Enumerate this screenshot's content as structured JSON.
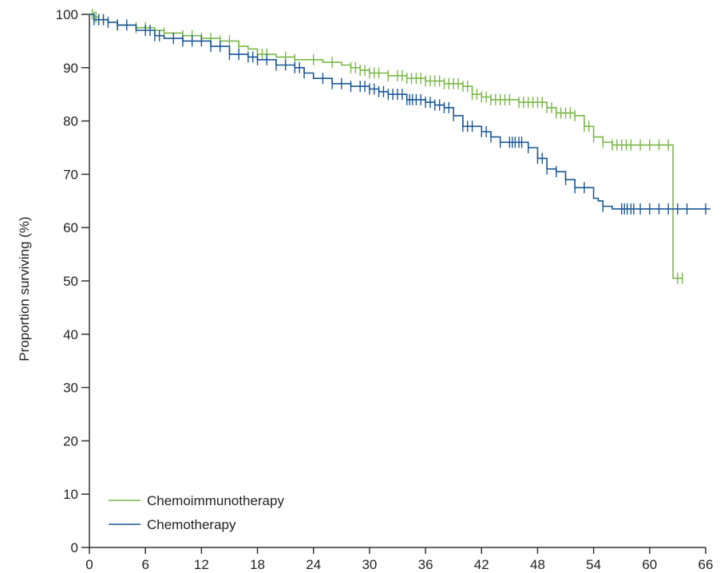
{
  "chart_data": {
    "type": "line",
    "ylabel": "Proportion surviving (%)",
    "xlabel": "",
    "xlim": [
      0,
      66
    ],
    "ylim": [
      0,
      100
    ],
    "x_ticks": [
      0,
      6,
      12,
      18,
      24,
      30,
      36,
      42,
      48,
      54,
      60,
      66
    ],
    "y_ticks": [
      0,
      10,
      20,
      30,
      40,
      50,
      60,
      70,
      80,
      90,
      100
    ],
    "grid": false,
    "legend_position": "bottom-left",
    "series": [
      {
        "name": "Chemoimmunotherapy",
        "color": "#7ab648",
        "points": [
          [
            0,
            100
          ],
          [
            0.5,
            99.5
          ],
          [
            1,
            99
          ],
          [
            2,
            98.5
          ],
          [
            3,
            98
          ],
          [
            5,
            97.5
          ],
          [
            7,
            97
          ],
          [
            8,
            96.5
          ],
          [
            10,
            96
          ],
          [
            12,
            95.5
          ],
          [
            14,
            95
          ],
          [
            16,
            94
          ],
          [
            17,
            93.5
          ],
          [
            18,
            92.5
          ],
          [
            20,
            92
          ],
          [
            22,
            91.5
          ],
          [
            25,
            91
          ],
          [
            27,
            90.5
          ],
          [
            28,
            90
          ],
          [
            29,
            89.5
          ],
          [
            30,
            89
          ],
          [
            32,
            88.5
          ],
          [
            34,
            88
          ],
          [
            36,
            87.5
          ],
          [
            38,
            87
          ],
          [
            40,
            86.5
          ],
          [
            41,
            85
          ],
          [
            42,
            84.5
          ],
          [
            43,
            84
          ],
          [
            46,
            83.5
          ],
          [
            49,
            82.5
          ],
          [
            50,
            81.5
          ],
          [
            52,
            81
          ],
          [
            53,
            79
          ],
          [
            54,
            77
          ],
          [
            55,
            76
          ],
          [
            56,
            75.5
          ],
          [
            62.5,
            75.5
          ],
          [
            62.5,
            50.5
          ],
          [
            63.6,
            50.5
          ]
        ],
        "censor_x": [
          0.3,
          0.5,
          0.7,
          1,
          1.5,
          3,
          5,
          6,
          8,
          10,
          11,
          12,
          13,
          14,
          15,
          16,
          18,
          18.5,
          19,
          21,
          22,
          24,
          26,
          28,
          28.5,
          29,
          29.5,
          30,
          30.5,
          31,
          32,
          33,
          33.5,
          34,
          34.5,
          35,
          35.5,
          36,
          36.5,
          37,
          37.5,
          38,
          38.5,
          39,
          39.5,
          40,
          40.5,
          41,
          41.5,
          42,
          42.5,
          43,
          43.5,
          44,
          44.5,
          45,
          46,
          46.5,
          47,
          47.5,
          48,
          48.5,
          49,
          49.5,
          50,
          50.5,
          51,
          51.5,
          52,
          53,
          53.5,
          54,
          55,
          56,
          56.5,
          57,
          57.5,
          58,
          59,
          60,
          61,
          62,
          63,
          63.5
        ]
      },
      {
        "name": "Chemotherapy",
        "color": "#1a5796",
        "points": [
          [
            0,
            100
          ],
          [
            0.5,
            99
          ],
          [
            2,
            98.5
          ],
          [
            3,
            98
          ],
          [
            5,
            97
          ],
          [
            7,
            96
          ],
          [
            8,
            95.5
          ],
          [
            10,
            95
          ],
          [
            13,
            94
          ],
          [
            15,
            92.5
          ],
          [
            17,
            92
          ],
          [
            18,
            91.5
          ],
          [
            20,
            90.5
          ],
          [
            22,
            90
          ],
          [
            23,
            89
          ],
          [
            24,
            88
          ],
          [
            26,
            87
          ],
          [
            28,
            86.5
          ],
          [
            30,
            86
          ],
          [
            31,
            85.5
          ],
          [
            32,
            85
          ],
          [
            34,
            84
          ],
          [
            36,
            83.5
          ],
          [
            37,
            83
          ],
          [
            38,
            82.5
          ],
          [
            39,
            81
          ],
          [
            40,
            79
          ],
          [
            42,
            78
          ],
          [
            43,
            77
          ],
          [
            44,
            76
          ],
          [
            47,
            75
          ],
          [
            48,
            73
          ],
          [
            49,
            71
          ],
          [
            50,
            70.5
          ],
          [
            51,
            69
          ],
          [
            52,
            67.5
          ],
          [
            54,
            65.5
          ],
          [
            54.5,
            65
          ],
          [
            55,
            64
          ],
          [
            56,
            63.5
          ],
          [
            66.5,
            63.5
          ]
        ],
        "censor_x": [
          0.5,
          1,
          1.5,
          2,
          3,
          4,
          6,
          6.5,
          7,
          7.5,
          9,
          10,
          11,
          12,
          13,
          14,
          15,
          16,
          17,
          17.5,
          18,
          19,
          20,
          21,
          22,
          22.5,
          23,
          25,
          26,
          27,
          28,
          29,
          29.5,
          30,
          30.5,
          31,
          31.5,
          32,
          32.5,
          33,
          33.5,
          34,
          34.3,
          34.6,
          35,
          35.5,
          36,
          36.5,
          37,
          37.5,
          38,
          38.5,
          39,
          40,
          40.5,
          41,
          42,
          42.5,
          43,
          44,
          45,
          45.3,
          45.6,
          46,
          46.3,
          47,
          48,
          48.5,
          49,
          50,
          51,
          52,
          53,
          55,
          57,
          57.3,
          57.6,
          58,
          58.3,
          59,
          60,
          61,
          62,
          63,
          64,
          66
        ]
      }
    ]
  }
}
